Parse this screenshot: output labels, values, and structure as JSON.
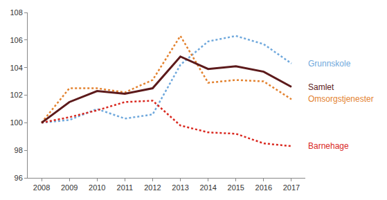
{
  "chart_data": {
    "type": "line",
    "x": [
      2008,
      2009,
      2010,
      2011,
      2012,
      2013,
      2014,
      2015,
      2016,
      2017
    ],
    "series": [
      {
        "name": "Grunnskole",
        "color": "#6fa8dc",
        "line_style": "dotted",
        "values": [
          100,
          100.2,
          101.0,
          100.3,
          100.6,
          104.2,
          105.9,
          106.3,
          105.7,
          104.3
        ]
      },
      {
        "name": "Omsorgstjenester",
        "color": "#e3822f",
        "line_style": "dotted",
        "values": [
          100,
          102.5,
          102.5,
          102.2,
          103.1,
          106.3,
          102.9,
          103.1,
          103.0,
          101.7
        ]
      },
      {
        "name": "Barnehage",
        "color": "#d9281f",
        "line_style": "dotted",
        "values": [
          100,
          100.4,
          100.9,
          101.5,
          101.6,
          99.8,
          99.3,
          99.2,
          98.5,
          98.3
        ]
      },
      {
        "name": "Samlet",
        "color": "#5c1a1b",
        "line_style": "solid",
        "values": [
          100,
          101.5,
          102.3,
          102.1,
          102.5,
          104.8,
          103.9,
          104.1,
          103.7,
          102.6
        ]
      }
    ],
    "xlim": [
      2007.5,
      2017.5
    ],
    "xticks": [
      2008,
      2009,
      2010,
      2011,
      2012,
      2013,
      2014,
      2015,
      2016,
      2017
    ],
    "ylim": [
      96,
      108
    ],
    "yticks": [
      96,
      98,
      100,
      102,
      104,
      106,
      108
    ],
    "grid": false
  }
}
